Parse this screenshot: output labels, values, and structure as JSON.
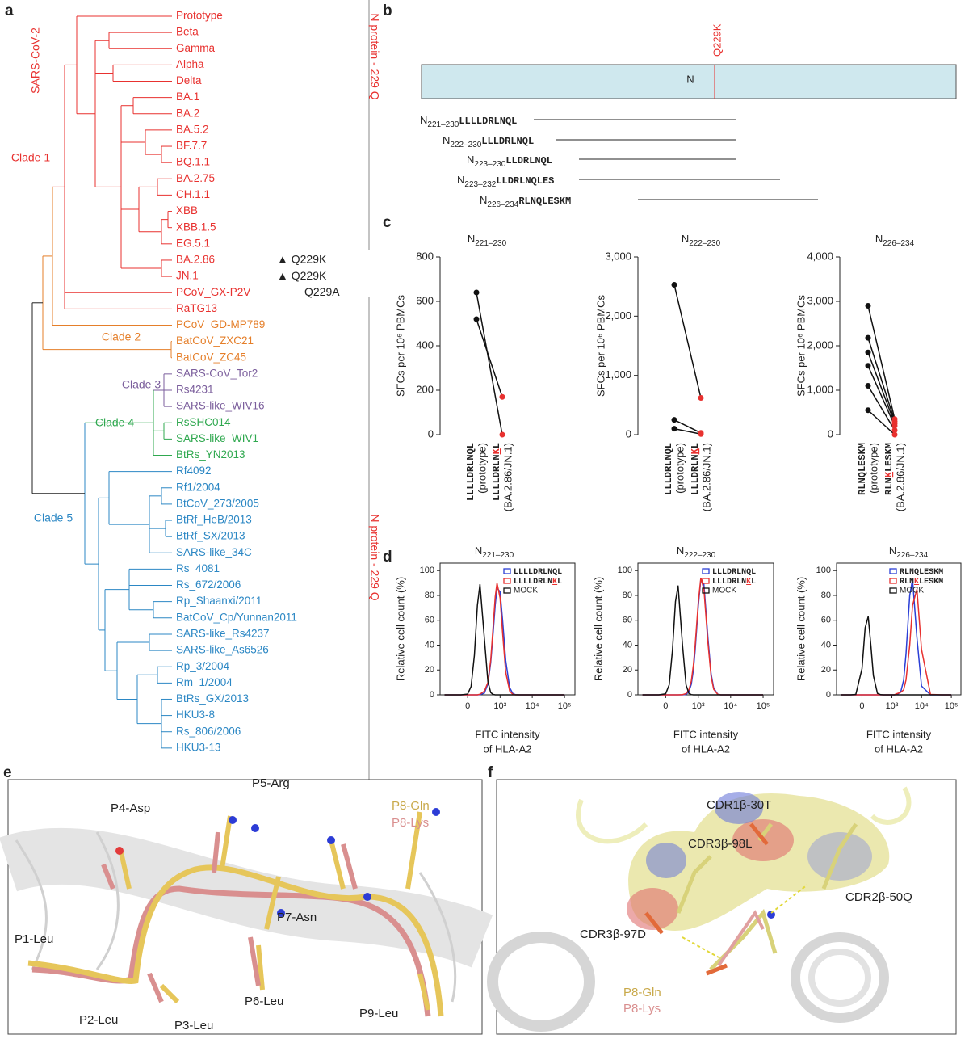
{
  "panel_labels": [
    "a",
    "b",
    "c",
    "d",
    "e",
    "f"
  ],
  "tree": {
    "leaves": [
      {
        "label": "Prototype",
        "color": "#e8312f"
      },
      {
        "label": "Beta",
        "color": "#e8312f"
      },
      {
        "label": "Gamma",
        "color": "#e8312f"
      },
      {
        "label": "Alpha",
        "color": "#e8312f"
      },
      {
        "label": "Delta",
        "color": "#e8312f"
      },
      {
        "label": "BA.1",
        "color": "#e8312f"
      },
      {
        "label": "BA.2",
        "color": "#e8312f"
      },
      {
        "label": "BA.5.2",
        "color": "#e8312f"
      },
      {
        "label": "BF.7.7",
        "color": "#e8312f"
      },
      {
        "label": "BQ.1.1",
        "color": "#e8312f"
      },
      {
        "label": "BA.2.75",
        "color": "#e8312f"
      },
      {
        "label": "CH.1.1",
        "color": "#e8312f"
      },
      {
        "label": "XBB",
        "color": "#e8312f"
      },
      {
        "label": "XBB.1.5",
        "color": "#e8312f"
      },
      {
        "label": "EG.5.1",
        "color": "#e8312f"
      },
      {
        "label": "BA.2.86",
        "color": "#e8312f"
      },
      {
        "label": "JN.1",
        "color": "#e8312f"
      },
      {
        "label": "PCoV_GX-P2V",
        "color": "#e8312f"
      },
      {
        "label": "RaTG13",
        "color": "#e8312f"
      },
      {
        "label": "PCoV_GD-MP789",
        "color": "#e57f2a"
      },
      {
        "label": "BatCoV_ZXC21",
        "color": "#e57f2a"
      },
      {
        "label": "BatCoV_ZC45",
        "color": "#e57f2a"
      },
      {
        "label": "SARS-CoV_Tor2",
        "color": "#7b5e9c"
      },
      {
        "label": "Rs4231",
        "color": "#7b5e9c"
      },
      {
        "label": "SARS-like_WIV16",
        "color": "#7b5e9c"
      },
      {
        "label": "RsSHC014",
        "color": "#2fa84f"
      },
      {
        "label": "SARS-like_WIV1",
        "color": "#2fa84f"
      },
      {
        "label": "BtRs_YN2013",
        "color": "#2fa84f"
      },
      {
        "label": "Rf4092",
        "color": "#2b87c4"
      },
      {
        "label": "Rf1/2004",
        "color": "#2b87c4"
      },
      {
        "label": "BtCoV_273/2005",
        "color": "#2b87c4"
      },
      {
        "label": "BtRf_HeB/2013",
        "color": "#2b87c4"
      },
      {
        "label": "BtRf_SX/2013",
        "color": "#2b87c4"
      },
      {
        "label": "SARS-like_34C",
        "color": "#2b87c4"
      },
      {
        "label": "Rs_4081",
        "color": "#2b87c4"
      },
      {
        "label": "Rs_672/2006",
        "color": "#2b87c4"
      },
      {
        "label": "Rp_Shaanxi/2011",
        "color": "#2b87c4"
      },
      {
        "label": "BatCoV_Cp/Yunnan2011",
        "color": "#2b87c4"
      },
      {
        "label": "SARS-like_Rs4237",
        "color": "#2b87c4"
      },
      {
        "label": "SARS-like_As6526",
        "color": "#2b87c4"
      },
      {
        "label": "Rp_3/2004",
        "color": "#2b87c4"
      },
      {
        "label": "Rm_1/2004",
        "color": "#2b87c4"
      },
      {
        "label": "BtRs_GX/2013",
        "color": "#2b87c4"
      },
      {
        "label": "HKU3-8",
        "color": "#2b87c4"
      },
      {
        "label": "Rs_806/2006",
        "color": "#2b87c4"
      },
      {
        "label": "HKU3-13",
        "color": "#2b87c4"
      }
    ],
    "clades": [
      {
        "label": "SARS-CoV-2",
        "color": "#e8312f"
      },
      {
        "label": "Clade 1",
        "color": "#e8312f"
      },
      {
        "label": "Clade 2",
        "color": "#e57f2a"
      },
      {
        "label": "Clade 3",
        "color": "#7b5e9c"
      },
      {
        "label": "Clade 4",
        "color": "#2fa84f"
      },
      {
        "label": "Clade 5",
        "color": "#2b87c4"
      }
    ],
    "annotations": [
      "▲ Q229K",
      "▲ Q229K",
      "Q229A"
    ],
    "side_labels": [
      "N protein - 229 Q",
      "N protein - 229 Q"
    ]
  },
  "protein": {
    "label": "N",
    "mutation": "Q229K",
    "peptides": [
      {
        "prefix": "N",
        "range": "221–230",
        "seq": "LLLLDRLNQL"
      },
      {
        "prefix": "N",
        "range": "222–230",
        "seq": "LLLDRLNQL"
      },
      {
        "prefix": "N",
        "range": "223–230",
        "seq": "LLDRLNQL"
      },
      {
        "prefix": "N",
        "range": "223–232",
        "seq": "LLDRLNQLES"
      },
      {
        "prefix": "N",
        "range": "226–234",
        "seq": "RLNQLESKM"
      }
    ]
  },
  "chart_data": [
    {
      "type": "paired-line",
      "title": "N",
      "title_sub": "221–230",
      "categories": [
        "LLLLDRLNQL",
        "LLLLDRLNKL"
      ],
      "category_notes": [
        "(prototype)",
        "(BA.2.86/JN.1)"
      ],
      "ylabel": "SFCs per 10⁶ PBMCs",
      "ylim": [
        0,
        800
      ],
      "yticks": [
        0,
        200,
        400,
        600,
        800
      ],
      "point_colors": [
        "#111111",
        "#e8312f"
      ],
      "line_color": "#111111",
      "series": [
        {
          "values": [
            640,
            0
          ]
        },
        {
          "values": [
            520,
            170
          ]
        }
      ]
    },
    {
      "type": "paired-line",
      "title": "N",
      "title_sub": "222–230",
      "categories": [
        "LLLDRLNQL",
        "LLLDRLNKL"
      ],
      "category_notes": [
        "(prototype)",
        "(BA.2.86/JN.1)"
      ],
      "ylabel": "SFCs per 10⁶ PBMCs",
      "ylim": [
        0,
        3000
      ],
      "yticks": [
        0,
        {
          "value": 1000,
          "label": "1,000"
        },
        {
          "value": 2000,
          "label": "2,000"
        },
        {
          "value": 3000,
          "label": "3,000"
        }
      ],
      "point_colors": [
        "#111111",
        "#e8312f"
      ],
      "line_color": "#111111",
      "series": [
        {
          "values": [
            2530,
            620
          ]
        },
        {
          "values": [
            250,
            30
          ]
        },
        {
          "values": [
            100,
            10
          ]
        }
      ]
    },
    {
      "type": "paired-line",
      "title": "N",
      "title_sub": "226–234",
      "categories": [
        "RLNQLESKM",
        "RLNKLESKM"
      ],
      "category_notes": [
        "(prototype)",
        "(BA.2.86/JN.1)"
      ],
      "ylabel": "SFCs per 10⁶ PBMCs",
      "ylim": [
        0,
        4000
      ],
      "yticks": [
        0,
        {
          "value": 1000,
          "label": "1,000"
        },
        {
          "value": 2000,
          "label": "2,000"
        },
        {
          "value": 3000,
          "label": "3,000"
        },
        {
          "value": 4000,
          "label": "4,000"
        }
      ],
      "point_colors": [
        "#111111",
        "#e8312f"
      ],
      "line_color": "#111111",
      "series": [
        {
          "values": [
            2900,
            350
          ]
        },
        {
          "values": [
            2180,
            300
          ]
        },
        {
          "values": [
            1850,
            250
          ]
        },
        {
          "values": [
            1550,
            200
          ]
        },
        {
          "values": [
            1100,
            100
          ]
        },
        {
          "values": [
            550,
            0
          ]
        }
      ]
    },
    {
      "type": "line",
      "title": "N",
      "title_sub": "221–230",
      "xscale": "biexponential",
      "x": [
        -500,
        -200,
        -100,
        0,
        50,
        100,
        150,
        200,
        300,
        400,
        500,
        600,
        700,
        800,
        1000,
        1200,
        1500,
        2000,
        2500,
        3000,
        4000,
        5000,
        7000,
        10000,
        20000,
        50000,
        100000
      ],
      "xlim": [
        -700,
        210000
      ],
      "xticks": [
        0,
        {
          "value": 1000,
          "label": "10³"
        },
        {
          "value": 10000,
          "label": "10⁴"
        },
        {
          "value": 100000,
          "label": "10⁵"
        }
      ],
      "ylim": [
        0,
        106
      ],
      "yticks": [
        0,
        20,
        40,
        60,
        80,
        100
      ],
      "ylabel": "Relative cell count (%)",
      "xlabel": "FITC intensity",
      "xlabel_2": "of HLA-A2",
      "legend": "upper right",
      "series": [
        {
          "name": "LLLLDRLNQL",
          "color": "#2b3fd6",
          "values": [
            0,
            0,
            0,
            0,
            0,
            0,
            0,
            0.1,
            1.4,
            8.7,
            26,
            50,
            72.5,
            86,
            83,
            60,
            27.5,
            5.7,
            1,
            0.2,
            0,
            0,
            0,
            0,
            0,
            0,
            0
          ]
        },
        {
          "name": "LLLLDRLNKL",
          "color": "#e8312f",
          "values": [
            0,
            0,
            0,
            0,
            0,
            0,
            0,
            0.5,
            3,
            10,
            28,
            55,
            79,
            90,
            78,
            50,
            18,
            3,
            0.4,
            0,
            0,
            0,
            0,
            0,
            0,
            0,
            0
          ]
        },
        {
          "name": "MOCK",
          "color": "#111111",
          "values": [
            0,
            0,
            0,
            0.6,
            6.7,
            32,
            72,
            89,
            45,
            10.7,
            1.8,
            0.3,
            0,
            0,
            0,
            0,
            0,
            0,
            0,
            0,
            0,
            0,
            0,
            0,
            0,
            0,
            0
          ]
        }
      ]
    },
    {
      "type": "line",
      "title": "N",
      "title_sub": "222–230",
      "xscale": "biexponential",
      "x": [
        -500,
        -200,
        -100,
        0,
        50,
        100,
        150,
        200,
        300,
        400,
        500,
        600,
        700,
        800,
        1000,
        1200,
        1500,
        2000,
        2500,
        3000,
        4000,
        5000,
        7000,
        10000,
        20000,
        50000,
        100000
      ],
      "xlim": [
        -700,
        210000
      ],
      "xticks": [
        0,
        {
          "value": 1000,
          "label": "10³"
        },
        {
          "value": 10000,
          "label": "10⁴"
        },
        {
          "value": 100000,
          "label": "10⁵"
        }
      ],
      "ylim": [
        0,
        106
      ],
      "yticks": [
        0,
        20,
        40,
        60,
        80,
        100
      ],
      "ylabel": "Relative cell count (%)",
      "xlabel": "FITC intensity",
      "xlabel_2": "of HLA-A2",
      "legend": "upper right",
      "series": [
        {
          "name": "LLLDRLNQL",
          "color": "#2b3fd6",
          "values": [
            0,
            0,
            0,
            0,
            0,
            0,
            0,
            0,
            0,
            0.4,
            2.5,
            8.5,
            20,
            36,
            71,
            93,
            89,
            46,
            17,
            5.5,
            0.5,
            0,
            0,
            0,
            0,
            0,
            0
          ]
        },
        {
          "name": "LLLDRLNKL",
          "color": "#e8312f",
          "values": [
            0,
            0,
            0,
            0,
            0,
            0,
            0,
            0,
            0.2,
            1,
            4,
            11,
            24,
            40,
            74,
            94,
            85,
            42,
            15,
            4.5,
            0.4,
            0,
            0,
            0,
            0,
            0,
            0
          ]
        },
        {
          "name": "MOCK",
          "color": "#111111",
          "values": [
            0,
            0,
            0,
            0.8,
            8,
            36,
            75,
            88,
            40,
            8,
            1.2,
            0.2,
            0,
            0,
            0,
            0,
            0,
            0,
            0,
            0,
            0,
            0,
            0,
            0,
            0,
            0,
            0
          ]
        }
      ]
    },
    {
      "type": "line",
      "title": "N",
      "title_sub": "226–234",
      "xscale": "biexponential",
      "x": [
        -500,
        -200,
        -100,
        0,
        50,
        100,
        150,
        200,
        300,
        400,
        500,
        600,
        700,
        800,
        1000,
        1200,
        1500,
        2000,
        2500,
        3000,
        4000,
        5000,
        7000,
        10000,
        20000,
        50000,
        100000
      ],
      "xlim": [
        -700,
        210000
      ],
      "xticks": [
        0,
        {
          "value": 1000,
          "label": "10³"
        },
        {
          "value": 10000,
          "label": "10⁴"
        },
        {
          "value": 100000,
          "label": "10⁵"
        }
      ],
      "ylim": [
        0,
        106
      ],
      "yticks": [
        0,
        20,
        40,
        60,
        80,
        100
      ],
      "ylabel": "Relative cell count (%)",
      "xlabel": "FITC intensity",
      "xlabel_2": "of HLA-A2",
      "legend": "upper right",
      "series": [
        {
          "name": "RLNQLESKM",
          "color": "#2b3fd6",
          "values": [
            0,
            0,
            0,
            0,
            0,
            0,
            0,
            0,
            0,
            0,
            0,
            0,
            0,
            0,
            0,
            0,
            0.2,
            2.4,
            12,
            33,
            80,
            93,
            46,
            7,
            0,
            0,
            0
          ]
        },
        {
          "name": "RLNKLESKM",
          "color": "#e8312f",
          "values": [
            0,
            0,
            0,
            0,
            0,
            0,
            0,
            0,
            0,
            0,
            0,
            0,
            0,
            0,
            0,
            0,
            1,
            2,
            4,
            12,
            40,
            72,
            85,
            36.5,
            0.3,
            0,
            0
          ]
        },
        {
          "name": "MOCK",
          "color": "#111111",
          "values": [
            0,
            0,
            0.3,
            21,
            54,
            63,
            39,
            15.5,
            1.2,
            0.1,
            0,
            0,
            0,
            0,
            0,
            0,
            0,
            0,
            0,
            0,
            0,
            0,
            0,
            0,
            0,
            0,
            0
          ]
        }
      ]
    }
  ],
  "structure_e": {
    "labels": [
      {
        "text": "P4-Asp",
        "color": "#222222"
      },
      {
        "text": "P5-Arg",
        "color": "#222222"
      },
      {
        "text": "P8-Gln",
        "color": "#c9a94a"
      },
      {
        "text": "P8-Lys",
        "color": "#d98f8f"
      },
      {
        "text": "P1-Leu",
        "color": "#222222"
      },
      {
        "text": "P7-Asn",
        "color": "#222222"
      },
      {
        "text": "P6-Leu",
        "color": "#222222"
      },
      {
        "text": "P2-Leu",
        "color": "#222222"
      },
      {
        "text": "P3-Leu",
        "color": "#222222"
      },
      {
        "text": "P9-Leu",
        "color": "#222222"
      }
    ]
  },
  "structure_f": {
    "labels": [
      {
        "text": "CDR1β-30T",
        "color": "#222222"
      },
      {
        "text": "CDR3β-98L",
        "color": "#222222"
      },
      {
        "text": "CDR2β-50Q",
        "color": "#222222"
      },
      {
        "text": "CDR3β-97D",
        "color": "#222222"
      },
      {
        "text": "P8-Gln",
        "color": "#c9a94a"
      },
      {
        "text": "P8-Lys",
        "color": "#d98f8f"
      }
    ]
  }
}
